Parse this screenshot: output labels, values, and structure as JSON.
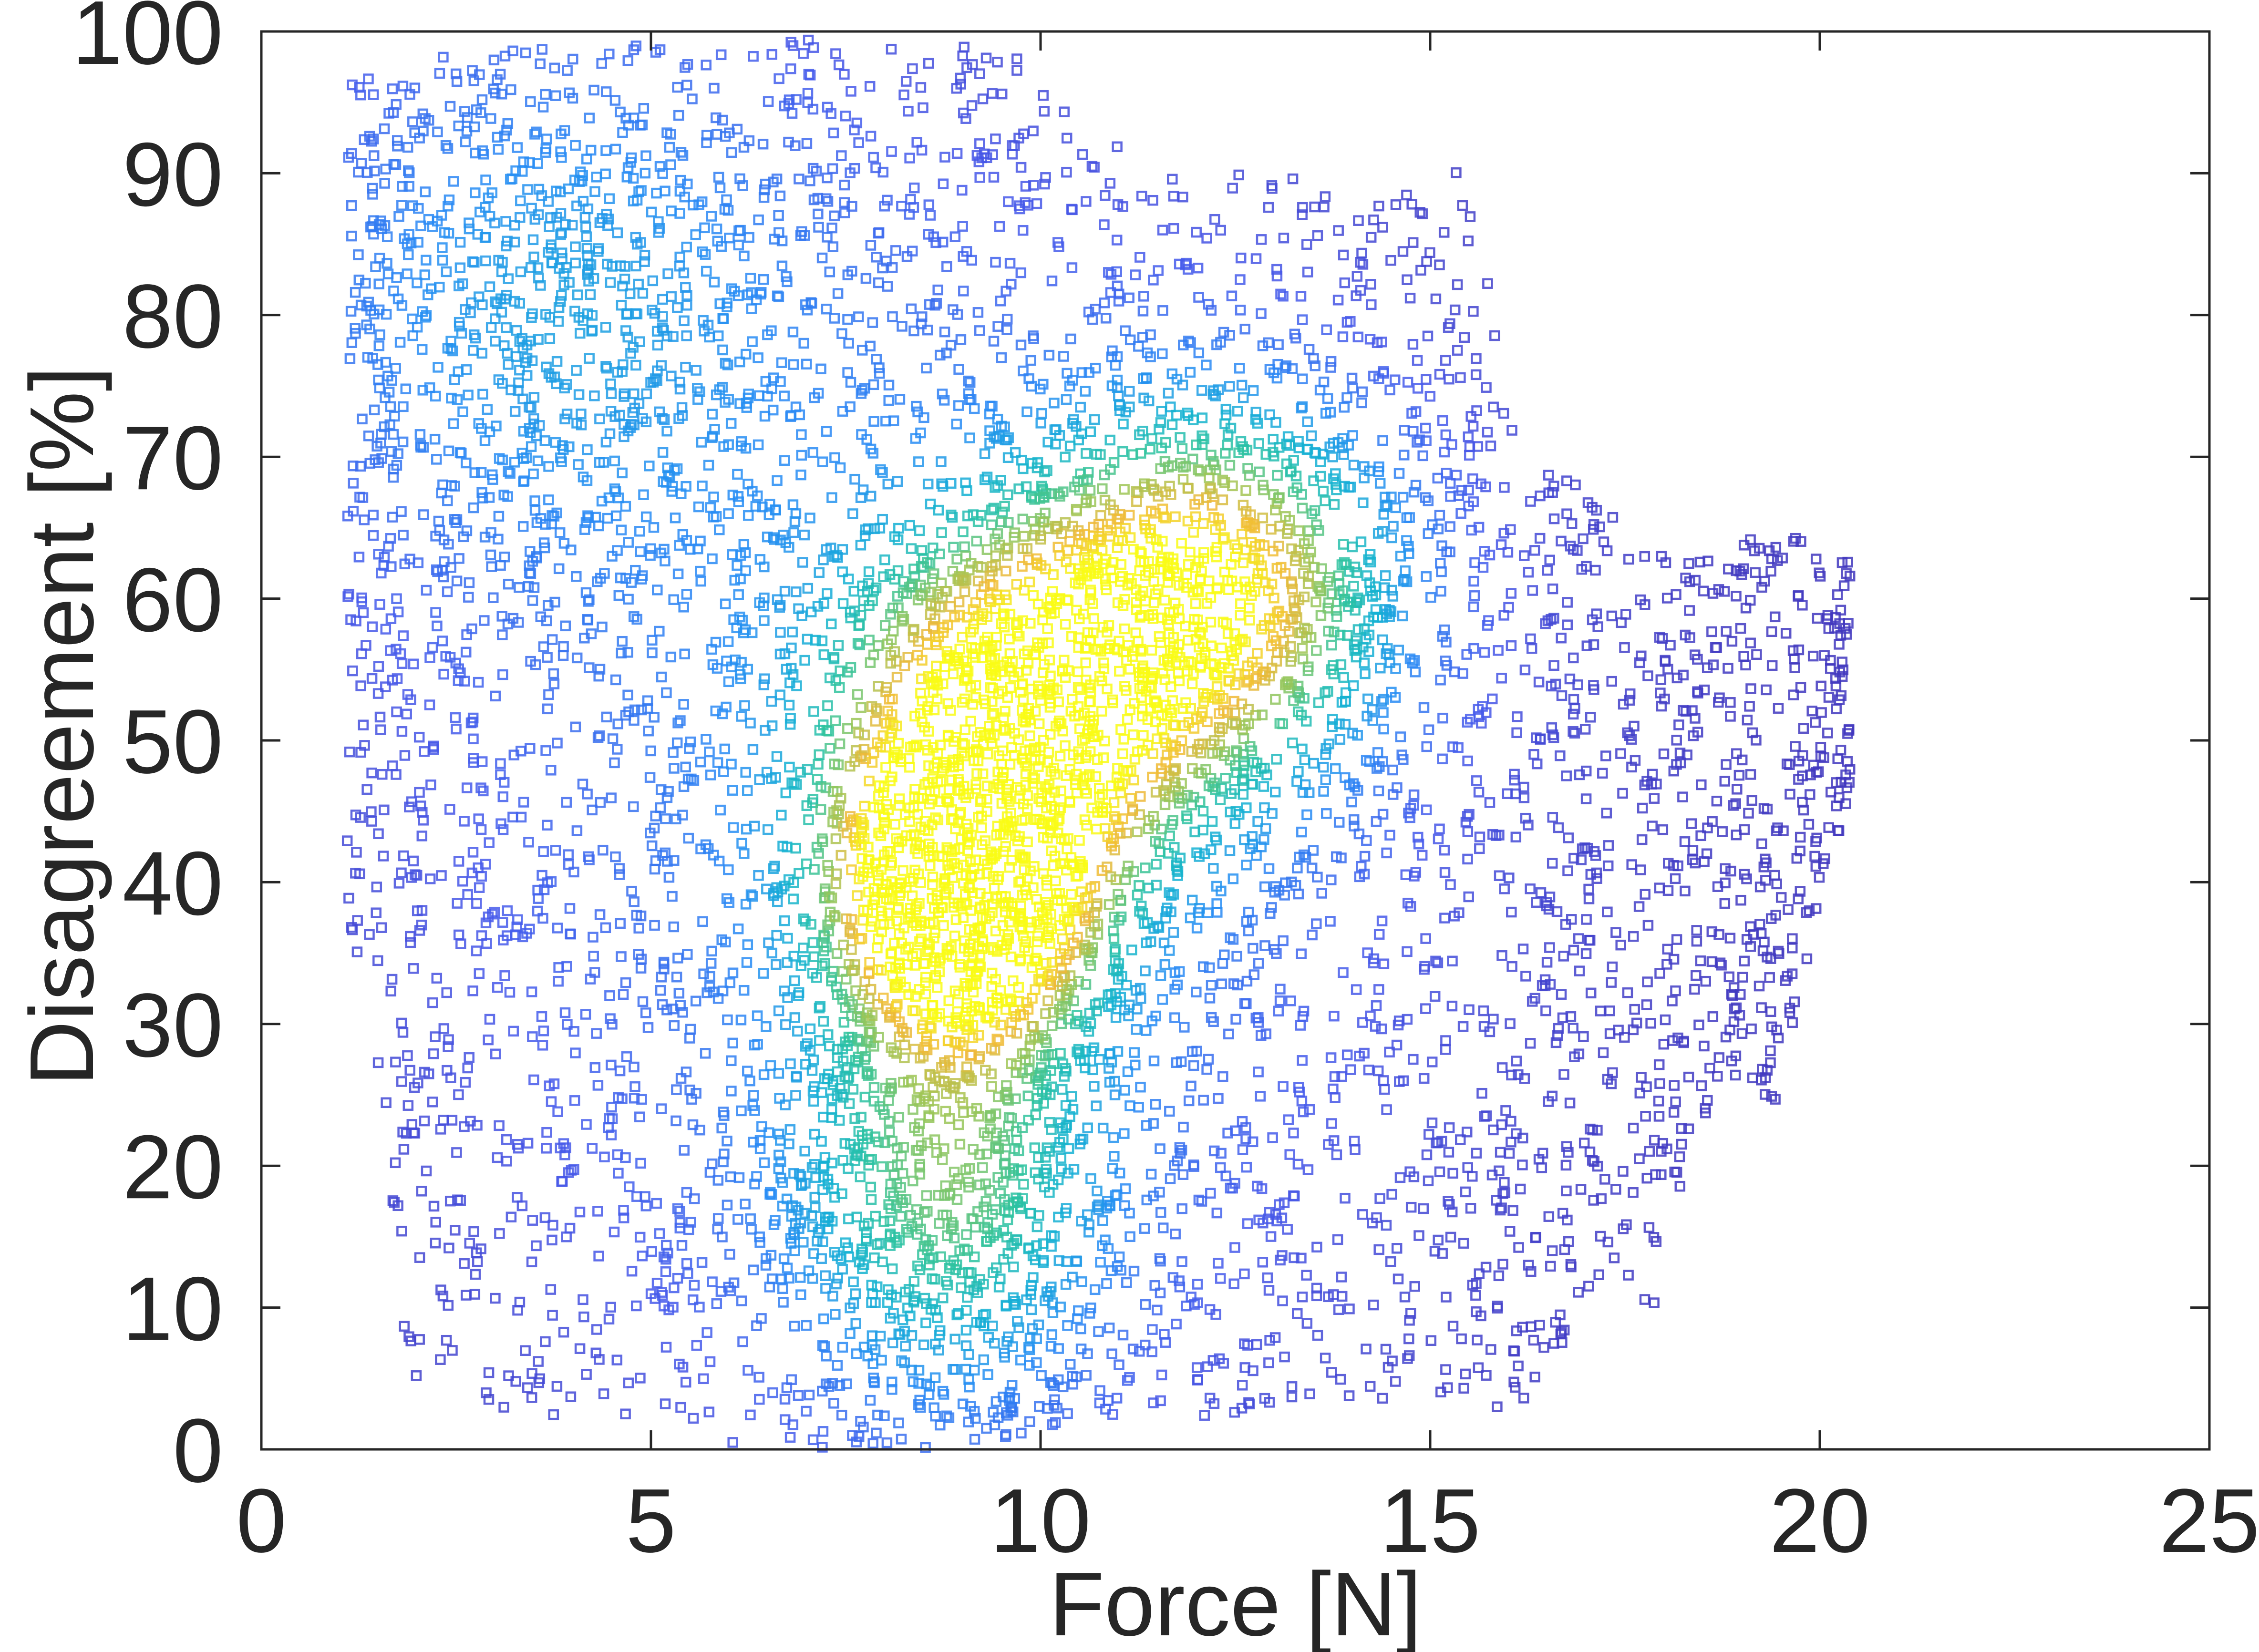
{
  "chart_data": {
    "type": "scatter",
    "title": "",
    "xlabel": "Force [N]",
    "ylabel": "Disagreement [%]",
    "xlim": [
      0,
      25
    ],
    "ylim": [
      0,
      100
    ],
    "xticks": [
      "0",
      "5",
      "10",
      "15",
      "20",
      "25"
    ],
    "yticks": [
      "0",
      "10",
      "20",
      "30",
      "40",
      "50",
      "60",
      "70",
      "80",
      "90",
      "100"
    ],
    "grid": false,
    "legend": "none",
    "marker": "open square",
    "colormap": "parula (point density)",
    "colors": {
      "low_density": "#3e26a8",
      "mid_density": "#1aa8d8",
      "high_density": "#f9fb15",
      "axes": "#262626",
      "background": "#ffffff"
    },
    "density_clusters": [
      {
        "x": 9.0,
        "y": 39,
        "level": "peak"
      },
      {
        "x": 9.7,
        "y": 52,
        "level": "high"
      },
      {
        "x": 12.3,
        "y": 61,
        "level": "high"
      },
      {
        "x": 8.8,
        "y": 18,
        "level": "medium"
      },
      {
        "x": 3.5,
        "y": 82,
        "level": "low"
      }
    ],
    "columns": [
      {
        "x": 1.3,
        "ymin": 33,
        "ymax": 98
      },
      {
        "x": 1.9,
        "ymin": 5,
        "ymax": 97
      },
      {
        "x": 2.6,
        "ymin": 2,
        "ymax": 100
      },
      {
        "x": 3.4,
        "ymin": 2,
        "ymax": 99
      },
      {
        "x": 4.2,
        "ymin": 3,
        "ymax": 99
      },
      {
        "x": 5.0,
        "ymin": 2,
        "ymax": 99
      },
      {
        "x": 5.8,
        "ymin": 0,
        "ymax": 99
      },
      {
        "x": 6.6,
        "ymin": 0,
        "ymax": 99
      },
      {
        "x": 7.4,
        "ymin": 0,
        "ymax": 100
      },
      {
        "x": 8.2,
        "ymin": 0,
        "ymax": 99
      },
      {
        "x": 9.0,
        "ymin": 0,
        "ymax": 99
      },
      {
        "x": 9.8,
        "ymin": 1,
        "ymax": 98
      },
      {
        "x": 10.6,
        "ymin": 1,
        "ymax": 94
      },
      {
        "x": 11.4,
        "ymin": 1,
        "ymax": 91
      },
      {
        "x": 12.2,
        "ymin": 2,
        "ymax": 91
      },
      {
        "x": 13.0,
        "ymin": 2,
        "ymax": 91
      },
      {
        "x": 13.8,
        "ymin": 3,
        "ymax": 89
      },
      {
        "x": 14.6,
        "ymin": 3,
        "ymax": 88
      },
      {
        "x": 15.4,
        "ymin": 2,
        "ymax": 92
      },
      {
        "x": 16.2,
        "ymin": 3,
        "ymax": 70
      },
      {
        "x": 17.0,
        "ymin": 10,
        "ymax": 68
      },
      {
        "x": 17.8,
        "ymin": 7,
        "ymax": 63
      },
      {
        "x": 18.6,
        "ymin": 25,
        "ymax": 63
      },
      {
        "x": 19.4,
        "ymin": 24,
        "ymax": 65
      },
      {
        "x": 20.2,
        "ymin": 43,
        "ymax": 63
      }
    ]
  }
}
